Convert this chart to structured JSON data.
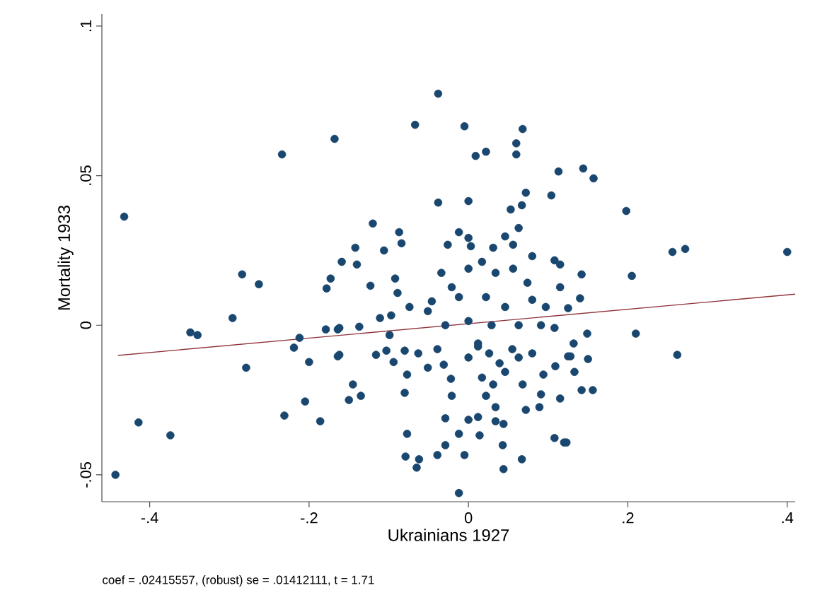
{
  "chart_data": {
    "type": "scatter",
    "xlabel": "Ukrainians 1927",
    "ylabel": "Mortality 1933",
    "annotations": [
      "coef = .02415557, (robust) se = .01412111, t = 1.71"
    ],
    "xlim": [
      -0.46,
      0.41
    ],
    "ylim": [
      -0.059,
      0.104
    ],
    "xticks": [
      {
        "value": -0.4,
        "label": "-.4"
      },
      {
        "value": -0.2,
        "label": "-.2"
      },
      0,
      {
        "value": 0.2,
        "label": ".2"
      },
      {
        "value": 0.4,
        "label": ".4"
      }
    ],
    "yticks": [
      {
        "value": -0.05,
        "label": "-.05"
      },
      0,
      {
        "value": 0.05,
        "label": ".05"
      },
      {
        "value": 0.1,
        "label": ".1"
      }
    ],
    "grid": false,
    "series": [
      {
        "color": "#1a476f",
        "x": [
          -0.432,
          -0.234,
          -0.168,
          -0.038,
          -0.067,
          -0.005,
          0.068,
          0.06,
          0.06,
          0.009,
          0.022,
          0.113,
          0.072,
          0.104,
          -0.038,
          0.0,
          0.053,
          0.067,
          0.063,
          -0.12,
          -0.087,
          -0.084,
          -0.142,
          -0.106,
          -0.012,
          0.0,
          -0.026,
          0.003,
          0.046,
          0.056,
          0.031,
          0.08,
          0.108,
          0.144,
          0.157,
          0.198,
          0.256,
          0.272,
          0.4,
          -0.284,
          -0.263,
          -0.296,
          -0.349,
          -0.34,
          -0.212,
          -0.219,
          -0.279,
          -0.2,
          -0.205,
          -0.231,
          -0.186,
          -0.414,
          -0.374,
          -0.443,
          -0.173,
          -0.178,
          -0.179,
          -0.164,
          -0.164,
          -0.159,
          -0.14,
          -0.123,
          -0.092,
          -0.089,
          -0.074,
          -0.162,
          -0.137,
          -0.111,
          -0.097,
          -0.099,
          -0.162,
          -0.116,
          -0.103,
          -0.094,
          -0.08,
          -0.063,
          -0.039,
          -0.031,
          -0.051,
          -0.077,
          -0.08,
          -0.145,
          -0.15,
          -0.135,
          -0.022,
          -0.021,
          -0.029,
          -0.077,
          -0.079,
          -0.065,
          -0.062,
          -0.039,
          -0.029,
          -0.005,
          -0.012,
          0.0,
          0.014,
          0.012,
          0.034,
          0.044,
          0.043,
          0.044,
          0.067,
          -0.012,
          0.034,
          0.072,
          0.089,
          0.068,
          0.091,
          0.115,
          0.108,
          0.12,
          0.094,
          0.109,
          0.125,
          0.0,
          0.012,
          0.026,
          0.039,
          0.055,
          0.063,
          0.017,
          0.031,
          0.046,
          0.08,
          0.022,
          -0.034,
          -0.021,
          -0.012,
          0.0,
          0.017,
          0.034,
          0.056,
          0.074,
          0.08,
          0.097,
          0.115,
          0.115,
          0.022,
          0.046,
          0.029,
          0.063,
          0.091,
          0.108,
          -0.029,
          -0.051,
          -0.046,
          0.0,
          0.012,
          0.142,
          0.205,
          0.14,
          0.125,
          0.21,
          0.149,
          0.132,
          0.128,
          0.15,
          0.133,
          0.142,
          0.156,
          0.262,
          0.123
        ],
        "values": [
          0.0363,
          0.0571,
          0.0623,
          0.0774,
          0.067,
          0.0665,
          0.0656,
          0.0608,
          0.0571,
          0.0566,
          0.058,
          0.0514,
          0.0443,
          0.0434,
          0.041,
          0.0415,
          0.0387,
          0.0401,
          0.0325,
          0.034,
          0.0311,
          0.0274,
          0.0259,
          0.025,
          0.0311,
          0.0292,
          0.0269,
          0.0264,
          0.0297,
          0.0269,
          0.0259,
          0.0231,
          0.0217,
          0.0524,
          0.0491,
          0.0382,
          0.0245,
          0.0255,
          0.0245,
          0.017,
          0.0137,
          0.0024,
          -0.0024,
          -0.0033,
          -0.0042,
          -0.0075,
          -0.0142,
          -0.0123,
          -0.0255,
          -0.0302,
          -0.0321,
          -0.0325,
          -0.0368,
          -0.05,
          0.0156,
          0.0123,
          -0.0014,
          -0.0104,
          -0.0014,
          0.0212,
          0.0203,
          0.0132,
          0.0156,
          0.0108,
          0.0061,
          -0.0009,
          -0.0005,
          0.0024,
          0.0033,
          -0.0033,
          -0.0099,
          -0.0099,
          -0.0085,
          -0.0123,
          -0.0085,
          -0.0094,
          -0.008,
          -0.0132,
          -0.0142,
          -0.0165,
          -0.0226,
          -0.0198,
          -0.025,
          -0.0236,
          -0.0179,
          -0.0236,
          -0.0311,
          -0.0363,
          -0.0439,
          -0.0476,
          -0.0448,
          -0.0434,
          -0.0401,
          -0.0434,
          -0.0363,
          -0.0316,
          -0.0368,
          -0.0307,
          -0.0321,
          -0.033,
          -0.0401,
          -0.0481,
          -0.0448,
          -0.0561,
          -0.0274,
          -0.0283,
          -0.0274,
          -0.0198,
          -0.0231,
          -0.0245,
          -0.0377,
          -0.0392,
          -0.0165,
          -0.0137,
          -0.0104,
          -0.0108,
          -0.0071,
          -0.0094,
          -0.0127,
          -0.008,
          -0.0108,
          -0.0175,
          -0.0198,
          -0.0156,
          -0.0094,
          -0.0236,
          0.0175,
          0.0127,
          0.0094,
          0.0189,
          0.0212,
          0.0175,
          0.0189,
          0.0142,
          0.0085,
          0.0061,
          0.0127,
          0.0203,
          0.0094,
          0.0061,
          0.0,
          0.0,
          0.0,
          -0.0009,
          0.0,
          0.0047,
          0.008,
          0.0014,
          -0.0061,
          0.017,
          0.0165,
          0.009,
          0.0057,
          -0.0028,
          -0.0028,
          -0.0061,
          -0.0104,
          -0.0113,
          -0.0156,
          -0.0217,
          -0.0217,
          -0.0099,
          -0.0392
        ]
      },
      {
        "type": "line",
        "color": "#90353b",
        "x": [
          -0.44,
          0.41
        ],
        "values": [
          -0.0101,
          0.0104
        ]
      }
    ]
  }
}
